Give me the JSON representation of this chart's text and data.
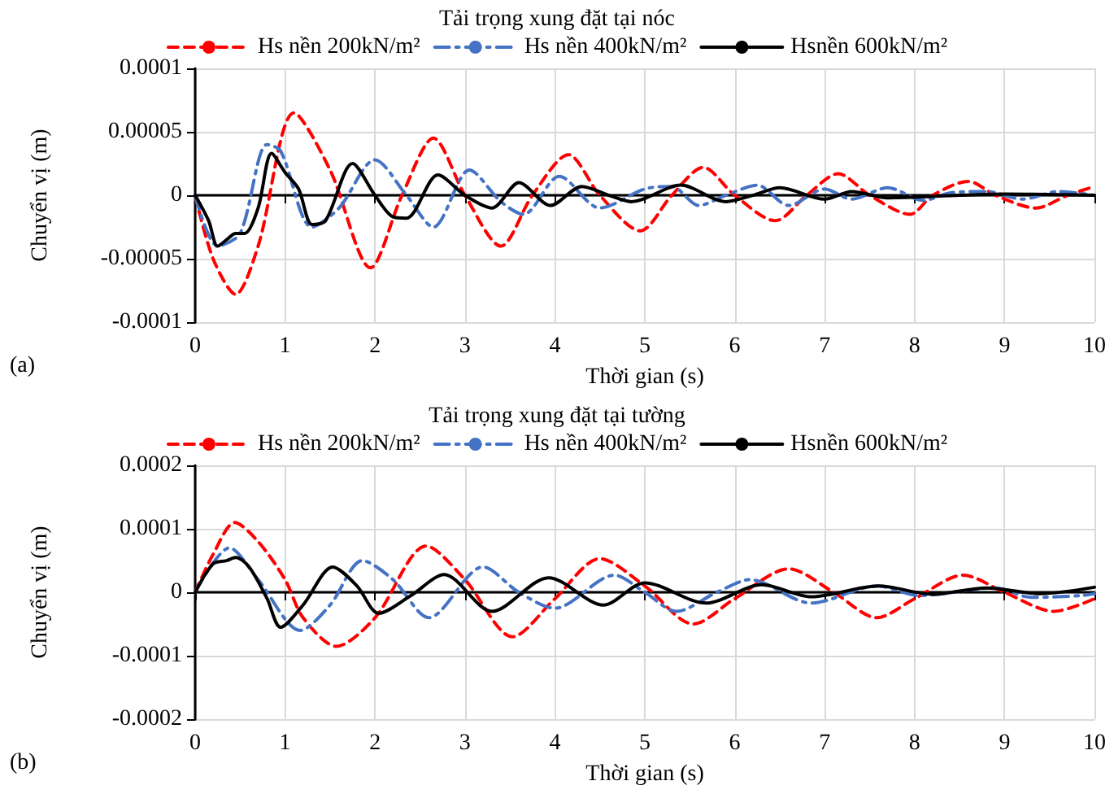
{
  "chart_data": [
    {
      "type": "line",
      "title": "Tải trọng xung đặt tại nóc",
      "xlabel": "Thời gian (s)",
      "ylabel": "Chuyển vị (m)",
      "annotations": [
        "(a)"
      ],
      "xlim": [
        0,
        10
      ],
      "xticks": [
        0,
        1,
        2,
        3,
        4,
        5,
        6,
        7,
        8,
        9,
        10
      ],
      "ylim": [
        -0.0001,
        0.0001
      ],
      "yticks": [
        -0.0001,
        {
          "value": -5e-05,
          "label": "-0.00005"
        },
        0,
        {
          "value": 5e-05,
          "label": "0.00005"
        },
        0.0001
      ],
      "grid": true,
      "legend": "top",
      "marker": "none",
      "series": [
        {
          "name": "Hs nền 200kN/m²",
          "color": "#ff0000",
          "line_style": "dashed",
          "x": [
            0,
            0.2,
            0.45,
            0.7,
            1.1,
            1.5,
            1.95,
            2.3,
            2.65,
            3.0,
            3.4,
            3.75,
            4.15,
            4.5,
            4.95,
            5.3,
            5.65,
            6.0,
            6.45,
            6.8,
            7.15,
            7.5,
            7.95,
            8.2,
            8.6,
            8.9,
            9.35,
            9.7,
            10
          ],
          "values": [
            0,
            -5e-05,
            -7.8e-05,
            -4e-05,
            6.5e-05,
            2e-05,
            -5.7e-05,
            0,
            4.5e-05,
            0,
            -4e-05,
            0,
            3.2e-05,
            0,
            -2.8e-05,
            0,
            2.2e-05,
            0,
            -2e-05,
            0,
            1.7e-05,
            0,
            -1.5e-05,
            0,
            1.1e-05,
            0,
            -1e-05,
            0,
            7e-06
          ]
        },
        {
          "name": "Hs nền 400kN/m²",
          "color": "#4472c4",
          "line_style": "dashdot",
          "x": [
            0,
            0.25,
            0.5,
            0.8,
            0.95,
            1.3,
            1.6,
            2.0,
            2.35,
            2.65,
            3.05,
            3.4,
            3.65,
            4.05,
            4.5,
            5.0,
            5.3,
            5.6,
            5.9,
            6.25,
            6.6,
            7.0,
            7.3,
            7.7,
            8.1,
            8.4,
            8.8,
            9.2,
            9.6,
            10
          ],
          "values": [
            0,
            -4e-05,
            -3e-05,
            4e-05,
            3.5e-05,
            -2.5e-05,
            -1e-05,
            2.8e-05,
            0,
            -2.5e-05,
            2e-05,
            -5e-06,
            -1.5e-05,
            1.5e-05,
            -1e-05,
            5e-06,
            7e-06,
            -8e-06,
            0,
            8e-06,
            -8e-06,
            5e-06,
            -3e-06,
            6e-06,
            -4e-06,
            2e-06,
            3e-06,
            -3e-06,
            3e-06,
            0
          ]
        },
        {
          "name": "Hsnền 600kN/m²",
          "color": "#000000",
          "line_style": "solid",
          "x": [
            0,
            0.15,
            0.25,
            0.35,
            0.45,
            0.55,
            0.7,
            0.85,
            1.0,
            1.15,
            1.3,
            1.45,
            1.75,
            2.0,
            2.2,
            2.35,
            2.7,
            3.0,
            3.3,
            3.6,
            3.95,
            4.3,
            4.6,
            4.85,
            5.4,
            5.9,
            6.2,
            6.5,
            7.0,
            7.3,
            7.7,
            8.5,
            9.0,
            10
          ],
          "values": [
            0,
            -2e-05,
            -4e-05,
            -3.5e-05,
            -3e-05,
            -3e-05,
            -1e-05,
            3.3e-05,
            1.8e-05,
            5e-06,
            -2.3e-05,
            -2e-05,
            2.5e-05,
            0,
            -1.7e-05,
            -1.8e-05,
            1.6e-05,
            0,
            -1e-05,
            1e-05,
            -8e-06,
            7e-06,
            0,
            -5e-06,
            8e-06,
            -5e-06,
            0,
            6e-06,
            -3e-06,
            3e-06,
            -2e-06,
            0,
            1e-06,
            0
          ]
        }
      ]
    },
    {
      "type": "line",
      "title": "Tải trọng xung đặt tại tường",
      "xlabel": "Thời gian (s)",
      "ylabel": "Chuyển vị (m)",
      "annotations": [
        "(b)"
      ],
      "xlim": [
        0,
        10
      ],
      "xticks": [
        0,
        1,
        2,
        3,
        4,
        5,
        6,
        7,
        8,
        9,
        10
      ],
      "ylim": [
        -0.0002,
        0.0002
      ],
      "yticks": [
        -0.0002,
        -0.0001,
        0,
        0.0001,
        0.0002
      ],
      "grid": true,
      "legend": "top",
      "marker": "none",
      "series": [
        {
          "name": "Hs nền 200kN/m²",
          "color": "#ff0000",
          "line_style": "dashed",
          "x": [
            0,
            0.2,
            0.44,
            0.7,
            1.0,
            1.2,
            1.57,
            2.0,
            2.57,
            3.0,
            3.53,
            4.0,
            4.5,
            5.0,
            5.54,
            6.0,
            6.6,
            7.1,
            7.58,
            8.0,
            8.54,
            9.0,
            9.55,
            10
          ],
          "values": [
            0,
            6e-05,
            0.00011,
            8e-05,
            2e-05,
            -4e-05,
            -8.5e-05,
            -4e-05,
            7.3e-05,
            2e-05,
            -7e-05,
            -1e-05,
            5.3e-05,
            1e-05,
            -5e-05,
            -1e-05,
            3.7e-05,
            0,
            -4e-05,
            -1e-05,
            2.7e-05,
            0,
            -3e-05,
            -1e-05
          ]
        },
        {
          "name": "Hs nền 400kN/m²",
          "color": "#4472c4",
          "line_style": "dashdot",
          "x": [
            0,
            0.38,
            0.7,
            1.17,
            1.5,
            1.86,
            2.2,
            2.6,
            3.2,
            3.6,
            4.0,
            4.66,
            5.0,
            5.35,
            5.8,
            6.17,
            6.85,
            7.58,
            8.05,
            8.9,
            9.3,
            9.87,
            10
          ],
          "values": [
            0,
            7e-05,
            2e-05,
            -6e-05,
            -2e-05,
            5e-05,
            2e-05,
            -4e-05,
            4e-05,
            0,
            -2.5e-05,
            2.7e-05,
            0,
            -3e-05,
            0,
            2e-05,
            -1.7e-05,
            1e-05,
            -5e-06,
            7e-06,
            -8e-06,
            -5e-06,
            -2e-06
          ]
        },
        {
          "name": "Hsnền 600kN/m²",
          "color": "#000000",
          "line_style": "solid",
          "x": [
            0,
            0.2,
            0.35,
            0.45,
            0.6,
            0.8,
            0.95,
            1.2,
            1.53,
            1.8,
            2.04,
            2.4,
            2.77,
            3.3,
            3.93,
            4.54,
            5.0,
            5.68,
            6.3,
            6.85,
            7.6,
            8.2,
            8.8,
            9.4,
            10
          ],
          "values": [
            0,
            4.5e-05,
            5e-05,
            5.5e-05,
            4e-05,
            -1e-05,
            -5.5e-05,
            -2e-05,
            4e-05,
            1e-05,
            -3.3e-05,
            -5e-06,
            2.8e-05,
            -3e-05,
            2.3e-05,
            -2e-05,
            1.5e-05,
            -1.7e-05,
            1.2e-05,
            -7e-06,
            1e-05,
            -3e-06,
            7e-06,
            -2e-06,
            8e-06
          ]
        }
      ]
    }
  ]
}
